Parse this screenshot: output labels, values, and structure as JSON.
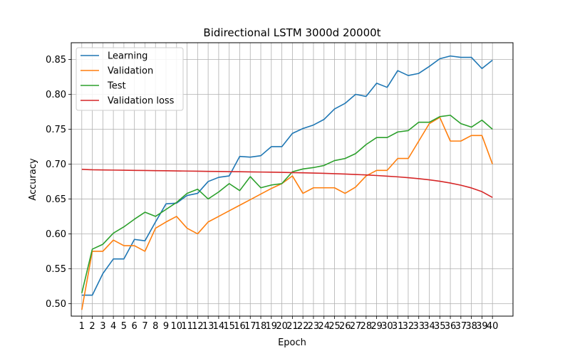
{
  "chart_data": {
    "type": "line",
    "title": "Bidirectional LSTM 3000d 20000t",
    "xlabel": "Epoch",
    "ylabel": "Accuracy",
    "x": [
      1,
      2,
      3,
      4,
      5,
      6,
      7,
      8,
      9,
      10,
      11,
      12,
      13,
      14,
      15,
      16,
      17,
      18,
      19,
      20,
      21,
      22,
      23,
      24,
      25,
      26,
      27,
      28,
      29,
      30,
      31,
      32,
      33,
      34,
      35,
      36,
      37,
      38,
      39,
      40
    ],
    "xlim": [
      0.0,
      41.95
    ],
    "ylim": [
      0.482,
      0.874
    ],
    "yticks": [
      0.5,
      0.55,
      0.6,
      0.65,
      0.7,
      0.75,
      0.8,
      0.85
    ],
    "ytick_labels": [
      "0.50",
      "0.55",
      "0.60",
      "0.65",
      "0.70",
      "0.75",
      "0.80",
      "0.85"
    ],
    "grid": true,
    "legend_position": "top-left",
    "series": [
      {
        "name": "Learning",
        "color": "#1f77b4",
        "values": [
          0.512,
          0.512,
          0.543,
          0.564,
          0.564,
          0.592,
          0.59,
          0.617,
          0.643,
          0.644,
          0.655,
          0.658,
          0.675,
          0.681,
          0.683,
          0.711,
          0.71,
          0.712,
          0.725,
          0.725,
          0.744,
          0.751,
          0.756,
          0.764,
          0.779,
          0.787,
          0.8,
          0.797,
          0.816,
          0.81,
          0.834,
          0.827,
          0.83,
          0.84,
          0.851,
          0.855,
          0.853,
          0.853,
          0.837,
          0.849
        ]
      },
      {
        "name": "Validation",
        "color": "#ff7f0e",
        "values": [
          0.491,
          0.575,
          0.575,
          0.591,
          0.583,
          0.583,
          0.575,
          0.608,
          0.617,
          0.625,
          0.608,
          0.6,
          0.617,
          0.625,
          0.633,
          0.641,
          0.649,
          0.657,
          0.665,
          0.672,
          0.683,
          0.658,
          0.666,
          0.666,
          0.666,
          0.658,
          0.667,
          0.683,
          0.691,
          0.691,
          0.708,
          0.708,
          0.733,
          0.758,
          0.767,
          0.733,
          0.733,
          0.741,
          0.741,
          0.7
        ]
      },
      {
        "name": "Test",
        "color": "#2ca02c",
        "values": [
          0.515,
          0.578,
          0.585,
          0.601,
          0.61,
          0.621,
          0.631,
          0.625,
          0.635,
          0.645,
          0.658,
          0.664,
          0.65,
          0.66,
          0.672,
          0.662,
          0.682,
          0.666,
          0.67,
          0.672,
          0.689,
          0.693,
          0.695,
          0.698,
          0.705,
          0.708,
          0.715,
          0.728,
          0.738,
          0.738,
          0.746,
          0.748,
          0.76,
          0.76,
          0.768,
          0.77,
          0.758,
          0.753,
          0.763,
          0.75
        ]
      },
      {
        "name": "Validation loss",
        "color": "#d62728",
        "values": [
          0.6925,
          0.6918,
          0.6916,
          0.6914,
          0.6912,
          0.691,
          0.6908,
          0.6906,
          0.6904,
          0.6902,
          0.69,
          0.6898,
          0.6896,
          0.6894,
          0.6892,
          0.689,
          0.6888,
          0.6886,
          0.6884,
          0.6881,
          0.6878,
          0.6875,
          0.6871,
          0.6867,
          0.6862,
          0.6857,
          0.6851,
          0.6844,
          0.6836,
          0.6827,
          0.6817,
          0.6805,
          0.6791,
          0.6774,
          0.6754,
          0.6728,
          0.6697,
          0.6658,
          0.6605,
          0.6522
        ]
      }
    ]
  }
}
